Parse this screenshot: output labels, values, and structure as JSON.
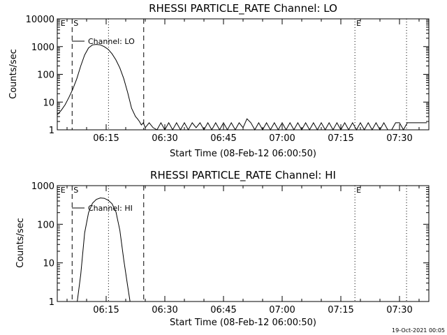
{
  "chart_data": [
    {
      "type": "line",
      "title": "RHESSI PARTICLE_RATE Channel: LO",
      "xlabel": "Start Time (08-Feb-12 06:00:50)",
      "ylabel": "Counts/sec",
      "y_scale": "log",
      "xlim_min": [
        2.5,
        97.5
      ],
      "ylim": [
        1,
        10000
      ],
      "x_ticks": [
        {
          "label": "06:15",
          "value": 15
        },
        {
          "label": "06:30",
          "value": 30
        },
        {
          "label": "06:45",
          "value": 45
        },
        {
          "label": "07:00",
          "value": 60
        },
        {
          "label": "07:15",
          "value": 75
        },
        {
          "label": "07:30",
          "value": 90
        }
      ],
      "y_ticks": [
        {
          "label": "1",
          "value": 1
        },
        {
          "label": "10",
          "value": 10
        },
        {
          "label": "100",
          "value": 100
        },
        {
          "label": "1000",
          "value": 1000
        },
        {
          "label": "10000",
          "value": 10000
        }
      ],
      "markers": [
        {
          "label": "E",
          "x": 3.0,
          "style": "none"
        },
        {
          "label": "S",
          "x": 6.3,
          "style": "dashed"
        },
        {
          "label": "",
          "x": 15.6,
          "style": "dotted"
        },
        {
          "label": "",
          "x": 24.6,
          "style": "dashed"
        },
        {
          "label": "E",
          "x": 78.6,
          "style": "dotted"
        },
        {
          "label": "",
          "x": 91.8,
          "style": "dotted"
        }
      ],
      "legend": "Channel: LO",
      "series": [
        {
          "name": "Channel: LO",
          "x": [
            2.5,
            3.5,
            4.5,
            5.5,
            6.5,
            7.5,
            8.5,
            9.5,
            10.5,
            11.5,
            12.5,
            13.5,
            14.5,
            15.5,
            16.5,
            17.5,
            18.5,
            19.5,
            20.5,
            21.5,
            22.5,
            23.0,
            23.5,
            24.0,
            24.5,
            25.0,
            26.0,
            27.0,
            28.0,
            29.0,
            30.0,
            31.0,
            32.0,
            33.0,
            34.0,
            35.0,
            36.0,
            37.0,
            38.0,
            39.0,
            40.0,
            41.0,
            42.0,
            43.0,
            44.0,
            45.0,
            46.0,
            47.0,
            48.0,
            49.0,
            50.0,
            51.0,
            52.0,
            53.0,
            54.0,
            55.0,
            56.0,
            57.0,
            58.0,
            59.0,
            60.0,
            61.0,
            62.0,
            63.0,
            64.0,
            65.0,
            66.0,
            67.0,
            68.0,
            69.0,
            70.0,
            71.0,
            72.0,
            73.0,
            74.0,
            75.0,
            76.0,
            77.0,
            78.0,
            79.0,
            80.0,
            81.0,
            82.0,
            83.0,
            84.0,
            85.0,
            86.0,
            87.0,
            88.0,
            89.0,
            90.0,
            91.0,
            92.0,
            93.0,
            94.0,
            95.0,
            96.0,
            97.0
          ],
          "values": [
            3.5,
            5,
            8,
            15,
            30,
            70,
            200,
            500,
            900,
            1150,
            1200,
            1150,
            1000,
            800,
            550,
            330,
            170,
            70,
            22,
            6,
            3,
            2.5,
            2,
            1.5,
            1.8,
            1.2,
            1.8,
            1.2,
            1,
            1.8,
            1,
            1.8,
            1,
            1.8,
            1,
            1.8,
            1,
            1.8,
            1.2,
            1.8,
            1,
            1.8,
            1,
            1.8,
            1,
            1.8,
            1,
            1.8,
            1,
            1.8,
            1.2,
            2.5,
            1.8,
            1,
            1.8,
            1,
            1.8,
            1,
            1.8,
            1,
            1.8,
            1,
            1.8,
            1,
            1.8,
            1,
            1.8,
            1,
            1.8,
            1,
            1.8,
            1,
            1.8,
            1,
            1.8,
            1,
            1.8,
            1,
            1.8,
            1,
            1.8,
            1,
            1.8,
            1,
            1.8,
            1,
            1.8,
            1,
            1,
            1.8,
            1.8,
            1,
            1.8,
            1.8,
            1.8,
            1.8,
            1.8,
            1.8
          ]
        }
      ]
    },
    {
      "type": "line",
      "title": "RHESSI PARTICLE_RATE Channel: HI",
      "xlabel": "Start Time (08-Feb-12 06:00:50)",
      "ylabel": "Counts/sec",
      "y_scale": "log",
      "xlim_min": [
        2.5,
        97.5
      ],
      "ylim": [
        1,
        1000
      ],
      "x_ticks": [
        {
          "label": "06:15",
          "value": 15
        },
        {
          "label": "06:30",
          "value": 30
        },
        {
          "label": "06:45",
          "value": 45
        },
        {
          "label": "07:00",
          "value": 60
        },
        {
          "label": "07:15",
          "value": 75
        },
        {
          "label": "07:30",
          "value": 90
        }
      ],
      "y_ticks": [
        {
          "label": "1",
          "value": 1
        },
        {
          "label": "10",
          "value": 10
        },
        {
          "label": "100",
          "value": 100
        },
        {
          "label": "1000",
          "value": 1000
        }
      ],
      "markers": [
        {
          "label": "E",
          "x": 3.0,
          "style": "none"
        },
        {
          "label": "S",
          "x": 6.3,
          "style": "dashed"
        },
        {
          "label": "",
          "x": 15.6,
          "style": "dotted"
        },
        {
          "label": "",
          "x": 24.6,
          "style": "dashed"
        },
        {
          "label": "E",
          "x": 78.6,
          "style": "dotted"
        },
        {
          "label": "",
          "x": 91.8,
          "style": "dotted"
        }
      ],
      "legend": "Channel: HI",
      "series": [
        {
          "name": "Channel: HI",
          "x": [
            7.6,
            8.5,
            9.5,
            10.5,
            11.5,
            12.5,
            13.5,
            14.5,
            15.5,
            16.5,
            17.5,
            18.5,
            19.5,
            20.5,
            21.1
          ],
          "values": [
            1,
            5,
            60,
            200,
            350,
            440,
            480,
            470,
            420,
            340,
            210,
            70,
            12,
            2.5,
            1
          ]
        }
      ]
    }
  ],
  "timestamp": "19-Oct-2021 00:05"
}
